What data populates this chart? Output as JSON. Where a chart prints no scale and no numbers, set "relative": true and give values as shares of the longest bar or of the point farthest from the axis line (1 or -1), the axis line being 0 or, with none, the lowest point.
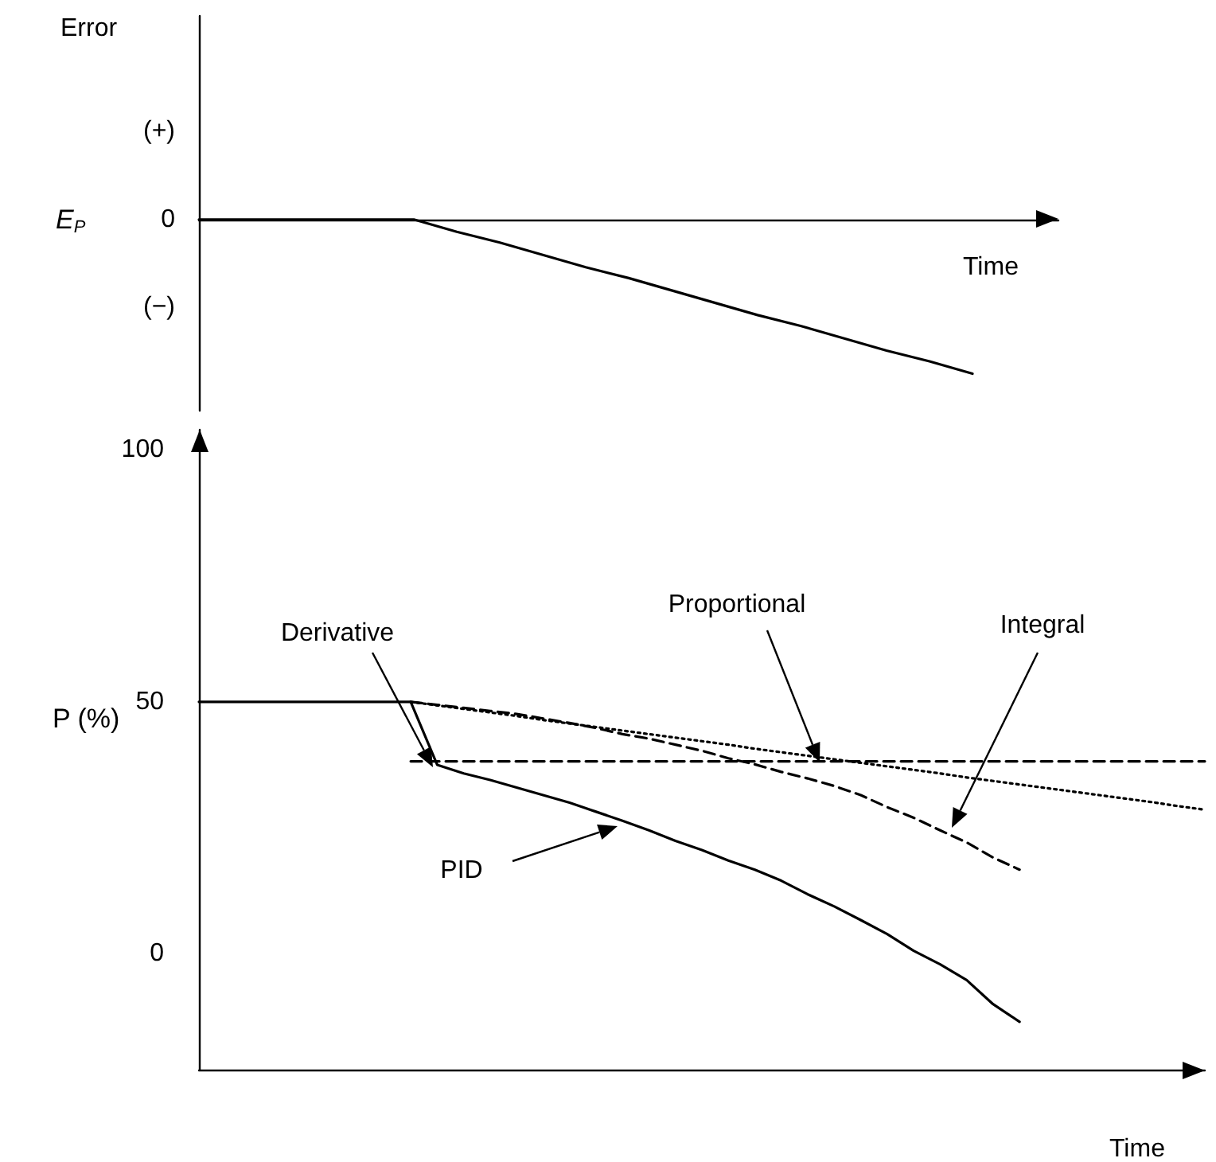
{
  "chart_data": [
    {
      "type": "line",
      "ylabel": "Error",
      "xlabel": "Time",
      "annotations": [
        "E$_{P}$",
        "(+)",
        "0",
        "(−)"
      ],
      "categories": [
        null,
        null,
        null,
        null,
        null,
        null,
        null,
        null,
        null,
        null,
        null,
        null,
        null,
        null,
        null,
        null,
        null,
        null,
        null,
        null,
        null
      ],
      "relative": true,
      "tick_labels": false,
      "legend": false,
      "grid": false,
      "marker": "none",
      "series": [
        {
          "color": "#000000",
          "line_style": "solid",
          "values": [
            0,
            0,
            0,
            0,
            0,
            0,
            -0.08,
            -0.15,
            -0.23,
            -0.31,
            -0.38,
            -0.46,
            -0.54,
            -0.62,
            -0.69,
            -0.77,
            -0.85,
            -0.92,
            -1,
            null,
            null
          ]
        }
      ]
    },
    {
      "type": "line",
      "ylabel": "P (%)",
      "xlabel": "Time",
      "categories": [
        null,
        null,
        null,
        null,
        null,
        null,
        null,
        null,
        null,
        null,
        null,
        null,
        null,
        null,
        null,
        null,
        null,
        null,
        null,
        null,
        null,
        null,
        null,
        null,
        null,
        null,
        null,
        null,
        null,
        null,
        null,
        null,
        null,
        null,
        null,
        null,
        null,
        null,
        null
      ],
      "ylim": [
        -23,
        104
      ],
      "yticks": [
        0,
        50,
        100
      ],
      "tick_labels": "y",
      "legend": false,
      "grid": false,
      "marker": "none",
      "series": [
        {
          "name": "PID",
          "color": "#000000",
          "line_style": "solid",
          "values": [
            50,
            50,
            50,
            50,
            50,
            50,
            50,
            50,
            50,
            37.5,
            35.8,
            34.5,
            33,
            31.5,
            30,
            28.2,
            26.4,
            24.5,
            22.4,
            20.6,
            18.5,
            16.7,
            14.5,
            11.8,
            9.4,
            6.7,
            3.9,
            0.6,
            -2.1,
            -5.2,
            -10,
            -13.5,
            null,
            null,
            null,
            null,
            null,
            null,
            null
          ]
        },
        {
          "name": "Proportional",
          "color": "#000000",
          "line_style": "dotted",
          "values": [
            null,
            null,
            null,
            null,
            null,
            null,
            null,
            null,
            50,
            49.3,
            48.6,
            47.9,
            47.2,
            46.4,
            45.7,
            45,
            44.3,
            43.6,
            42.9,
            42.2,
            41.5,
            40.7,
            40,
            39.3,
            38.6,
            37.9,
            37.2,
            36.5,
            35.8,
            35,
            34.3,
            33.6,
            32.9,
            32.2,
            31.5,
            30.8,
            30.1,
            29.3,
            28.6
          ]
        },
        {
          "name": "Integral",
          "color": "#000000",
          "line_style": "dashed",
          "values": [
            null,
            null,
            null,
            null,
            null,
            null,
            null,
            null,
            50,
            49.4,
            48.8,
            48.2,
            47.6,
            46.7,
            45.8,
            44.8,
            43.6,
            42.7,
            41.5,
            40.3,
            38.8,
            37.6,
            36.1,
            34.8,
            33.3,
            31.5,
            29.1,
            27,
            24.5,
            22.1,
            19.1,
            16.7,
            null,
            null,
            null,
            null,
            null,
            null,
            null
          ]
        },
        {
          "name": "Derivative",
          "color": "#000000",
          "line_style": "dashed",
          "values": [
            null,
            null,
            null,
            null,
            null,
            null,
            null,
            null,
            38.2,
            38.2,
            38.2,
            38.2,
            38.2,
            38.2,
            38.2,
            38.2,
            38.2,
            38.2,
            38.2,
            38.2,
            38.2,
            38.2,
            38.2,
            38.2,
            38.2,
            38.2,
            38.2,
            38.2,
            38.2,
            38.2,
            38.2,
            38.2,
            38.2,
            38.2,
            38.2,
            38.2,
            38.2,
            38.2,
            38.2
          ]
        }
      ]
    }
  ]
}
